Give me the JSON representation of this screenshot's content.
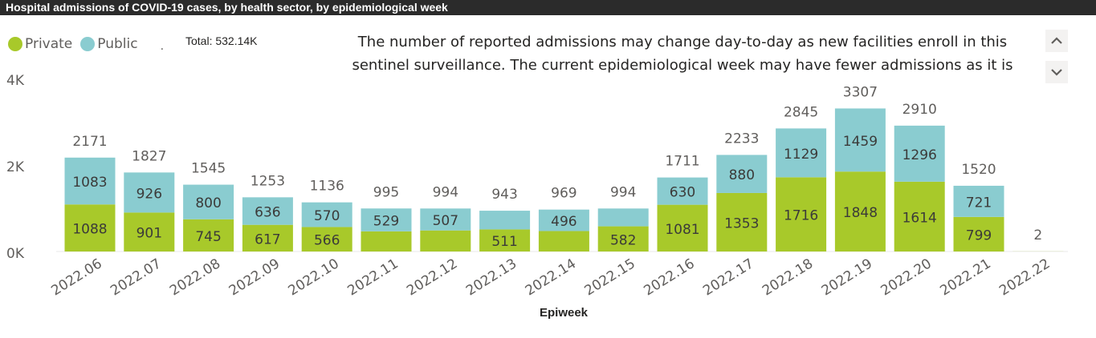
{
  "header": {
    "title": "Hospital admissions of COVID-19 cases, by health sector, by epidemiological week"
  },
  "legend": {
    "items": [
      {
        "label": "Private",
        "color": "#a8c92a"
      },
      {
        "label": "Public",
        "color": "#8accd0"
      }
    ],
    "separator": "."
  },
  "total": {
    "text": "Total: 532.14K"
  },
  "note": {
    "text": "The number of reported admissions may change day-to-day as new facilities enroll in this sentinel surveillance. The current epidemiological week may have fewer admissions as it is"
  },
  "scroll": {
    "up_icon": "chevron-up-icon",
    "down_icon": "chevron-down-icon"
  },
  "chart_data": {
    "type": "bar",
    "stacked": true,
    "xlabel": "Epiweek",
    "ylabel": "",
    "ylim": [
      0,
      4000
    ],
    "yticks": [
      {
        "value": 0,
        "label": "0K"
      },
      {
        "value": 2000,
        "label": "2K"
      },
      {
        "value": 4000,
        "label": "4K"
      }
    ],
    "categories": [
      "2022.06",
      "2022.07",
      "2022.08",
      "2022.09",
      "2022.10",
      "2022.11",
      "2022.12",
      "2022.13",
      "2022.14",
      "2022.15",
      "2022.16",
      "2022.17",
      "2022.18",
      "2022.19",
      "2022.20",
      "2022.21",
      "2022.22"
    ],
    "series": [
      {
        "name": "Private",
        "color": "#a8c92a",
        "values": [
          1088,
          901,
          745,
          617,
          566,
          466,
          487,
          511,
          473,
          582,
          1081,
          1353,
          1716,
          1848,
          1614,
          799,
          2
        ]
      },
      {
        "name": "Public",
        "color": "#8accd0",
        "values": [
          1083,
          926,
          800,
          636,
          570,
          529,
          507,
          432,
          496,
          412,
          630,
          880,
          1129,
          1459,
          1296,
          721,
          0
        ]
      }
    ],
    "private_labels": [
      "1088",
      "901",
      "745",
      "617",
      "566",
      "",
      "",
      "511",
      "",
      "582",
      "1081",
      "1353",
      "1716",
      "1848",
      "1614",
      "799",
      ""
    ],
    "public_labels": [
      "1083",
      "926",
      "800",
      "636",
      "570",
      "529",
      "507",
      "",
      "496",
      "",
      "630",
      "880",
      "1129",
      "1459",
      "1296",
      "721",
      ""
    ],
    "totals": [
      "2171",
      "1827",
      "1545",
      "1253",
      "1136",
      "995",
      "994",
      "943",
      "969",
      "994",
      "1711",
      "2233",
      "2845",
      "3307",
      "2910",
      "1520",
      "2"
    ],
    "grid": false,
    "legend_position": "top-left"
  }
}
